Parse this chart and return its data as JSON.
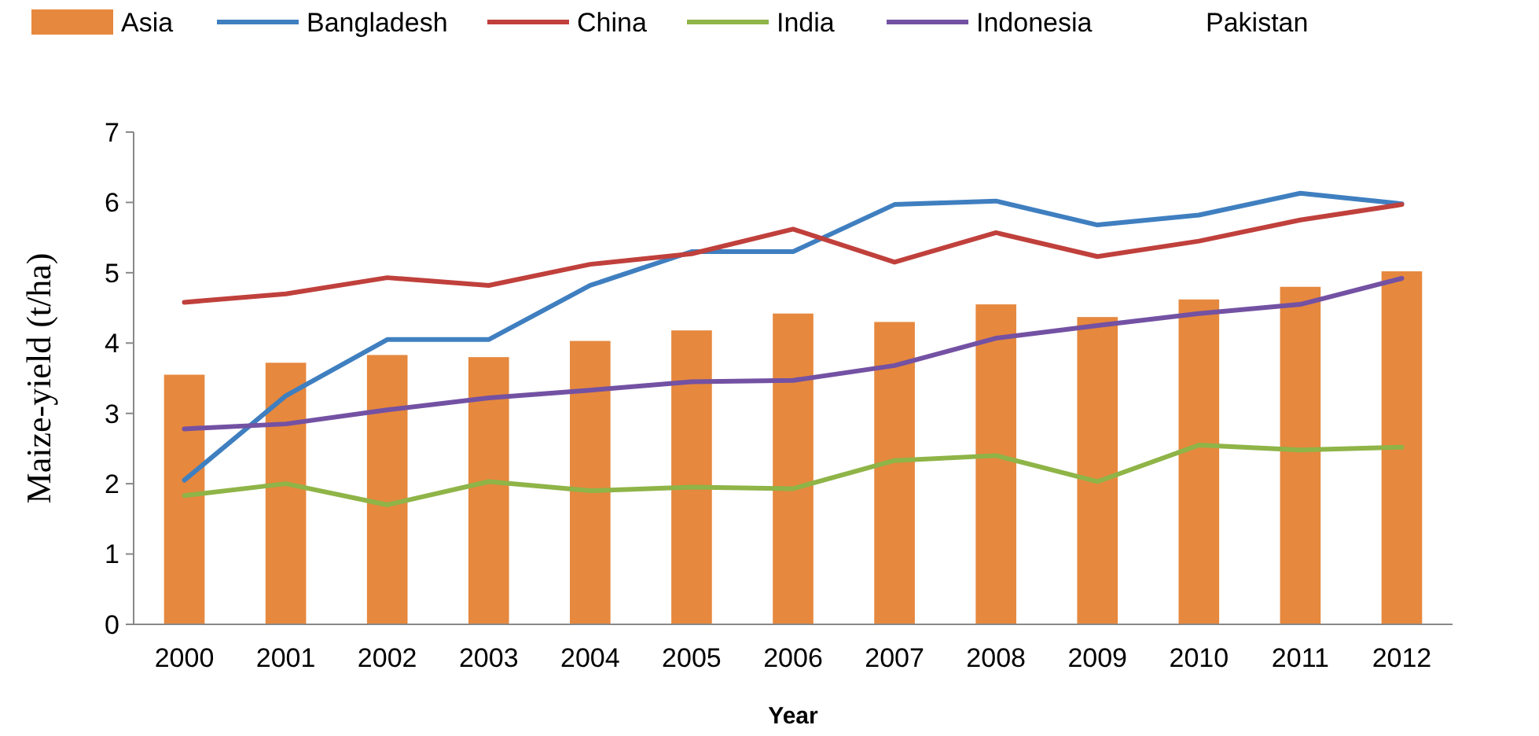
{
  "chart_data": {
    "type": "bar",
    "xlabel": "Year",
    "ylabel": "Maize-yield  (t/ha)",
    "categories": [
      "2000",
      "2001",
      "2002",
      "2003",
      "2004",
      "2005",
      "2006",
      "2007",
      "2008",
      "2009",
      "2010",
      "2011",
      "2012"
    ],
    "series": [
      {
        "name": "Asia",
        "color": "#e6883e",
        "values": [
          3.55,
          3.72,
          3.83,
          3.8,
          4.03,
          4.18,
          4.42,
          4.3,
          4.55,
          4.37,
          4.62,
          4.8,
          5.02
        ]
      },
      {
        "name": "Bangladesh",
        "type": "line",
        "color": "#3f7fc0",
        "values": [
          2.05,
          3.25,
          4.05,
          4.05,
          4.82,
          5.3,
          5.3,
          5.97,
          6.02,
          5.68,
          5.82,
          6.13,
          5.98
        ]
      },
      {
        "name": "China",
        "type": "line",
        "color": "#c0403c",
        "values": [
          4.58,
          4.7,
          4.93,
          4.82,
          5.12,
          5.27,
          5.62,
          5.15,
          5.57,
          5.23,
          5.45,
          5.75,
          5.97
        ]
      },
      {
        "name": "India",
        "type": "line",
        "color": "#8fb447",
        "values": [
          1.83,
          2.0,
          1.7,
          2.03,
          1.9,
          1.95,
          1.93,
          2.33,
          2.4,
          2.03,
          2.55,
          2.48,
          2.52
        ]
      },
      {
        "name": "Indonesia",
        "type": "line",
        "color": "#7351a3",
        "values": [
          2.78,
          2.85,
          3.05,
          3.22,
          3.33,
          3.45,
          3.47,
          3.68,
          4.07,
          4.25,
          4.42,
          4.55,
          4.92
        ]
      }
    ],
    "annotations": [
      "Pakistan"
    ],
    "ylim": [
      0,
      7
    ],
    "yticks": [
      0,
      1,
      2,
      3,
      4,
      5,
      6,
      7
    ],
    "legend": "top",
    "line_style": "solid"
  }
}
